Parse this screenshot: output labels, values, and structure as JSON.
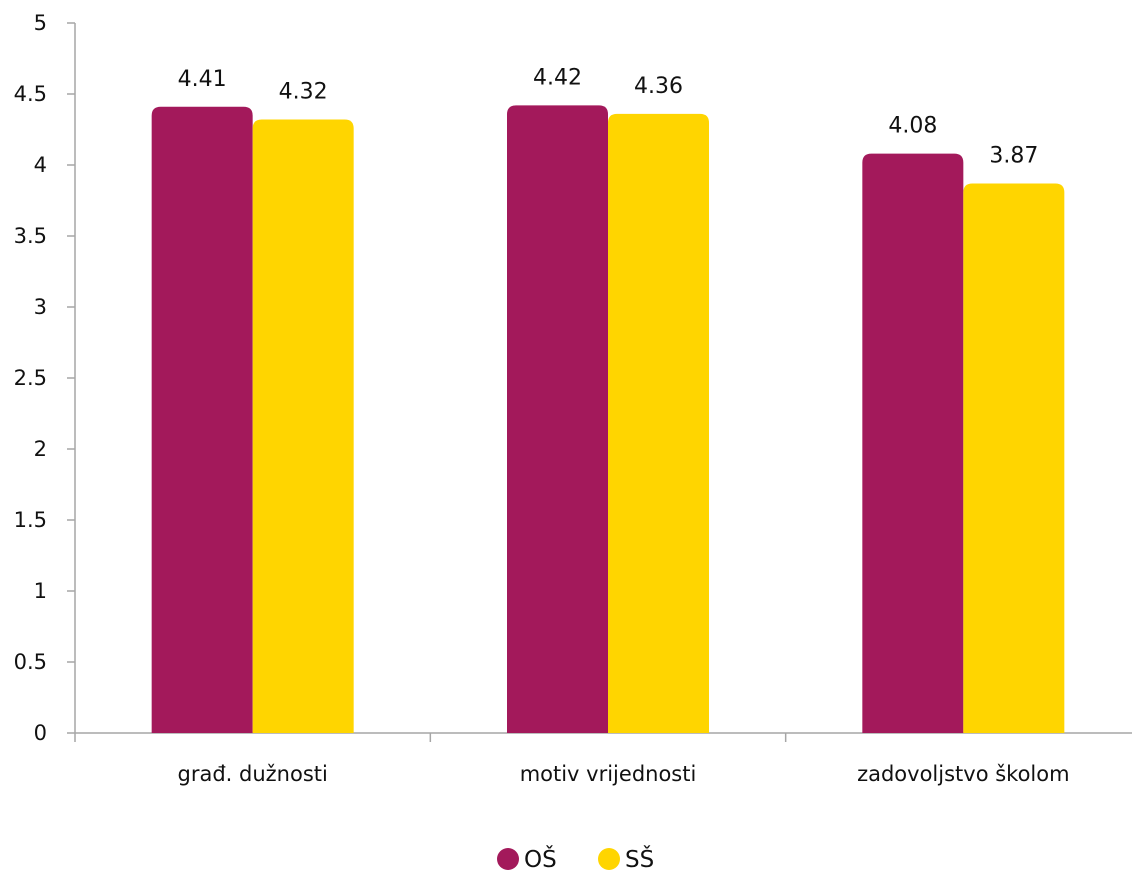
{
  "chart_data": {
    "type": "bar",
    "title": "",
    "xlabel": "",
    "ylabel": "",
    "ylim": [
      0,
      5
    ],
    "y_ticks": [
      0,
      0.5,
      1,
      1.5,
      2,
      2.5,
      3,
      3.5,
      4,
      4.5,
      5
    ],
    "y_tick_labels": [
      "0",
      "0.5",
      "1",
      "1.5",
      "2",
      "2.5",
      "3",
      "3.5",
      "4",
      "4.5",
      "5"
    ],
    "categories": [
      "građ. dužnosti",
      "motiv vrijednosti",
      "zadovoljstvo školom"
    ],
    "series": [
      {
        "name": "OŠ",
        "color": "#a3195b",
        "values": [
          4.41,
          4.42,
          4.08
        ],
        "labels": [
          "4.41",
          "4.42",
          "4.08"
        ]
      },
      {
        "name": "SŠ",
        "color": "#ffd500",
        "values": [
          4.32,
          4.36,
          3.87
        ],
        "labels": [
          "4.32",
          "4.36",
          "3.87"
        ]
      }
    ],
    "grid": false,
    "legend_position": "bottom-center"
  }
}
